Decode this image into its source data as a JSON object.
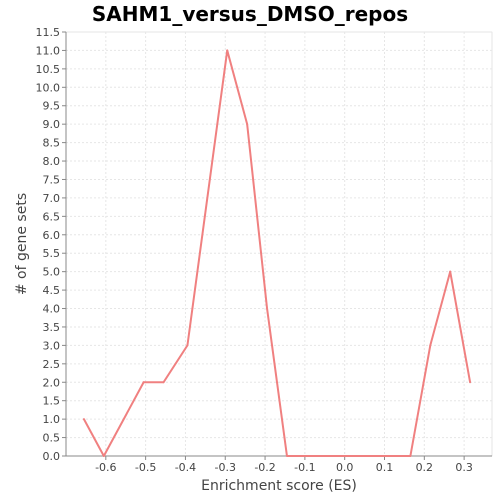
{
  "chart_data": {
    "type": "line",
    "title": "SAHM1_versus_DMSO_repos",
    "xlabel": "Enrichment score (ES)",
    "ylabel": "# of gene sets",
    "xlim": [
      -0.7,
      0.37
    ],
    "ylim": [
      0,
      11.5
    ],
    "x_ticks": [
      -0.6,
      -0.5,
      -0.4,
      -0.3,
      -0.2,
      -0.1,
      0.0,
      0.1,
      0.2,
      0.3
    ],
    "x_tick_labels": [
      "-0.6",
      "-0.5",
      "-0.4",
      "-0.3",
      "-0.2",
      "-0.1",
      "0.0",
      "0.1",
      "0.2",
      "0.3"
    ],
    "y_ticks": [
      0,
      0.5,
      1,
      1.5,
      2,
      2.5,
      3,
      3.5,
      4,
      4.5,
      5,
      5.5,
      6,
      6.5,
      7,
      7.5,
      8,
      8.5,
      9,
      9.5,
      10,
      10.5,
      11,
      11.5
    ],
    "y_tick_labels": [
      "0.0",
      "0.5",
      "1.0",
      "1.5",
      "2.0",
      "2.5",
      "3.0",
      "3.5",
      "4.0",
      "4.5",
      "5.0",
      "5.5",
      "6.0",
      "6.5",
      "7.0",
      "7.5",
      "8.0",
      "8.5",
      "9.0",
      "9.5",
      "10.0",
      "10.5",
      "11.0",
      "11.5"
    ],
    "grid": true,
    "series": [
      {
        "color": "#f08080",
        "x": [
          -0.655,
          -0.605,
          -0.505,
          -0.455,
          -0.395,
          -0.295,
          -0.245,
          -0.195,
          -0.145,
          -0.095,
          -0.045,
          0.005,
          0.055,
          0.105,
          0.165,
          0.215,
          0.265,
          0.315
        ],
        "y": [
          1,
          0,
          2,
          2,
          3,
          11,
          9,
          4,
          0,
          0,
          0,
          0,
          0,
          0,
          0,
          3,
          5,
          2
        ]
      }
    ]
  }
}
